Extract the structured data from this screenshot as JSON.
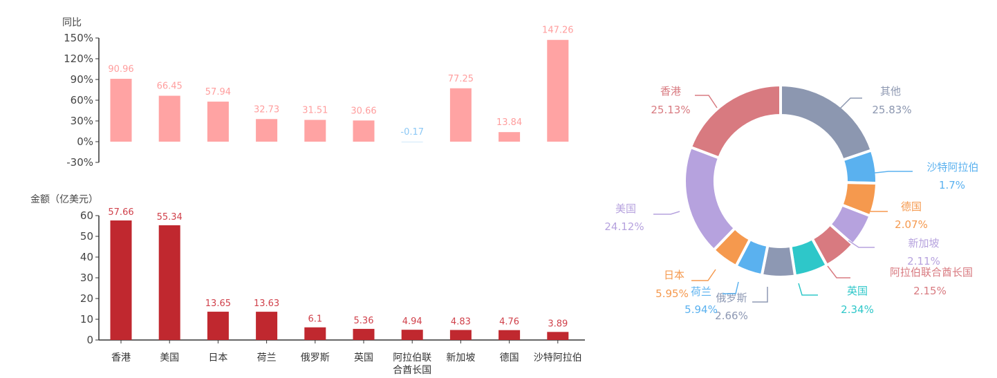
{
  "chart_data": [
    {
      "type": "bar",
      "ylabel": "同比",
      "categories": [
        "香港",
        "美国",
        "日本",
        "荷兰",
        "俄罗斯",
        "英国",
        "阿拉伯联合酋长国",
        "新加坡",
        "德国",
        "沙特阿拉伯"
      ],
      "values": [
        90.96,
        66.45,
        57.94,
        32.73,
        31.51,
        30.66,
        -0.17,
        77.25,
        13.84,
        147.26
      ],
      "value_labels": [
        "90.96",
        "66.45",
        "57.94",
        "32.73",
        "31.51",
        "30.66",
        "-0.17",
        "77.25",
        "13.84",
        "147.26"
      ],
      "ylim": [
        -30,
        150
      ],
      "yticks": [
        "-30%",
        "0%",
        "30%",
        "60%",
        "90%",
        "120%",
        "150%"
      ],
      "grid": false,
      "colors": {
        "bar": "#ffa3a3",
        "label": "#ff9d9d",
        "negative_label": "#8cc8f5"
      }
    },
    {
      "type": "bar",
      "ylabel": "金额（亿美元）",
      "categories": [
        "香港",
        "美国",
        "日本",
        "荷兰",
        "俄罗斯",
        "英国",
        "阿拉伯联合酋长国",
        "新加坡",
        "德国",
        "沙特阿拉伯"
      ],
      "category_labels": [
        [
          "香港"
        ],
        [
          "美国"
        ],
        [
          "日本"
        ],
        [
          "荷兰"
        ],
        [
          "俄罗斯"
        ],
        [
          "英国"
        ],
        [
          "阿拉伯联",
          "合酋长国"
        ],
        [
          "新加坡"
        ],
        [
          "德国"
        ],
        [
          "沙特阿拉伯"
        ]
      ],
      "values": [
        57.66,
        55.34,
        13.65,
        13.63,
        6.1,
        5.36,
        4.94,
        4.83,
        4.76,
        3.89
      ],
      "value_labels": [
        "57.66",
        "55.34",
        "13.65",
        "13.63",
        "6.1",
        "5.36",
        "4.94",
        "4.83",
        "4.76",
        "3.89"
      ],
      "ylim": [
        0,
        60
      ],
      "yticks": [
        "0",
        "10",
        "20",
        "30",
        "40",
        "50",
        "60"
      ],
      "grid": false,
      "colors": {
        "bar": "#c0282f",
        "label": "#d0404a"
      }
    },
    {
      "type": "pie",
      "donut": true,
      "slices": [
        {
          "name": "其他",
          "value": 25.83,
          "label": "25.83%",
          "color": "#8c97b0"
        },
        {
          "name": "沙特阿拉伯",
          "value": 1.7,
          "label": "1.7%",
          "color": "#5ab1ef"
        },
        {
          "name": "德国",
          "value": 2.07,
          "label": "2.07%",
          "color": "#f5994e"
        },
        {
          "name": "新加坡",
          "value": 2.11,
          "label": "2.11%",
          "color": "#b6a2de"
        },
        {
          "name": "阿拉伯联合酋长国",
          "value": 2.15,
          "label": "2.15%",
          "color": "#d87a80"
        },
        {
          "name": "英国",
          "value": 2.34,
          "label": "2.34%",
          "color": "#2ec7c9"
        },
        {
          "name": "俄罗斯",
          "value": 2.66,
          "label": "2.66%",
          "color": "#8d98b3"
        },
        {
          "name": "荷兰",
          "value": 5.94,
          "label": "5.94%",
          "color": "#5ab1ef"
        },
        {
          "name": "日本",
          "value": 5.95,
          "label": "5.95%",
          "color": "#f5994e"
        },
        {
          "name": "美国",
          "value": 24.12,
          "label": "24.12%",
          "color": "#b6a2de"
        },
        {
          "name": "香港",
          "value": 25.13,
          "label": "25.13%",
          "color": "#d87a80"
        }
      ]
    }
  ]
}
